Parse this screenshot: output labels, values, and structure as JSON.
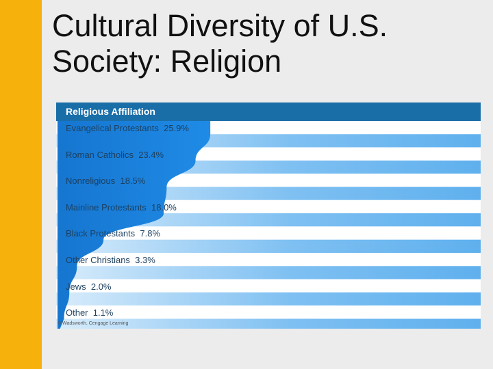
{
  "slide": {
    "title_line1": "Cultural Diversity of U.S.",
    "title_line2": "Society: Religion"
  },
  "colors": {
    "accent_bar": "#f6b10c",
    "header_blue": "#1a6ea8",
    "fill_blue": "#1f8be6",
    "stripe_blue": "#7fc0f2",
    "background": "#ececec"
  },
  "chart_data": {
    "type": "bar",
    "title": "Religious Affiliation",
    "categories": [
      "Evangelical Protestants",
      "Roman Catholics",
      "Nonreligious",
      "Mainline Protestants",
      "Black Protestants",
      "Other Christians",
      "Jews",
      "Other"
    ],
    "values": [
      25.9,
      23.4,
      18.5,
      18.0,
      7.8,
      3.3,
      2.0,
      1.1
    ],
    "value_labels": [
      "25.9%",
      "23.4%",
      "18.5%",
      "18.0%",
      "7.8%",
      "3.3%",
      "2.0%",
      "1.1%"
    ],
    "unit": "%",
    "xlim": [
      0,
      26
    ],
    "credit": "© Wadsworth, Cengage Learning"
  }
}
